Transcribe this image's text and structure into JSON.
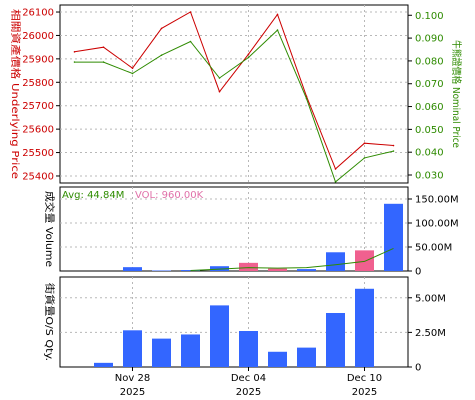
{
  "chart_data": [
    {
      "type": "line",
      "panel": "price",
      "y_left_label": "相關資產價格 Underlying Price",
      "y_right_label": "牛熊證價格 Nominal Price",
      "left_axis": {
        "min": 25370,
        "max": 26130,
        "ticks": [
          25400,
          25500,
          25600,
          25700,
          25800,
          25900,
          26000,
          26100
        ]
      },
      "right_axis": {
        "min": 0.0265,
        "max": 0.1045,
        "ticks": [
          "0.030",
          "0.040",
          "0.050",
          "0.060",
          "0.070",
          "0.080",
          "0.090",
          "0.100"
        ]
      },
      "series": [
        {
          "axis": "left",
          "color": "#cc0000",
          "values": [
            25930,
            25950,
            25860,
            26030,
            26100,
            25760,
            25920,
            26090,
            25740,
            25430,
            25540,
            25530
          ]
        },
        {
          "axis": "right",
          "color": "#2e8b00",
          "values": [
            0.0795,
            0.0795,
            0.0745,
            0.0825,
            0.0885,
            0.0725,
            0.0815,
            0.0935,
            0.0635,
            0.027,
            0.0375,
            0.0405
          ]
        }
      ]
    },
    {
      "type": "bar",
      "panel": "volume",
      "y_label": "成交量 Volume",
      "axis": {
        "min": 0,
        "max": 175,
        "ticks": [
          "0",
          "50.00M",
          "100.00M",
          "150.00M"
        ],
        "tick_values": [
          0,
          50,
          100,
          150
        ]
      },
      "avg_text": "Avg: 44.84M",
      "vol_text": "VOL: 960.00K",
      "bars": [
        {
          "value": 0,
          "color": ""
        },
        {
          "value": 0,
          "color": ""
        },
        {
          "value": 8,
          "color": "#3366ff"
        },
        {
          "value": 1,
          "color": "#3366ff"
        },
        {
          "value": 2,
          "color": "#3366ff"
        },
        {
          "value": 10,
          "color": "#3366ff"
        },
        {
          "value": 17,
          "color": "#f0608f"
        },
        {
          "value": 5,
          "color": "#f0608f"
        },
        {
          "value": 4,
          "color": "#3366ff"
        },
        {
          "value": 39,
          "color": "#3366ff"
        },
        {
          "value": 43,
          "color": "#f0608f"
        },
        {
          "value": 140,
          "color": "#3366ff"
        }
      ],
      "avg_line": {
        "color": "#2e8b00",
        "values": [
          null,
          null,
          null,
          null,
          1,
          4,
          7,
          6,
          7,
          13,
          20,
          47
        ]
      }
    },
    {
      "type": "bar",
      "panel": "os_qty",
      "y_label": "街貨量O/S Qty.",
      "axis": {
        "min": 0,
        "max": 6.5,
        "ticks": [
          "0",
          "2.50M",
          "5.00M"
        ],
        "tick_values": [
          0,
          2.5,
          5
        ]
      },
      "bars": [
        {
          "value": 0,
          "color": ""
        },
        {
          "value": 0.3,
          "color": "#3366ff"
        },
        {
          "value": 2.65,
          "color": "#3366ff"
        },
        {
          "value": 2.05,
          "color": "#3366ff"
        },
        {
          "value": 2.35,
          "color": "#3366ff"
        },
        {
          "value": 4.45,
          "color": "#3366ff"
        },
        {
          "value": 2.6,
          "color": "#3366ff"
        },
        {
          "value": 1.1,
          "color": "#3366ff"
        },
        {
          "value": 1.4,
          "color": "#3366ff"
        },
        {
          "value": 3.9,
          "color": "#3366ff"
        },
        {
          "value": 5.65,
          "color": "#3366ff"
        },
        {
          "value": 0,
          "color": ""
        }
      ]
    }
  ],
  "x_axis": {
    "labels": [
      {
        "index": 2,
        "line1": "Nov 28",
        "line2": "2025"
      },
      {
        "index": 6,
        "line1": "Dec 04",
        "line2": "2025"
      },
      {
        "index": 10,
        "line1": "Dec 10",
        "line2": "2025"
      }
    ]
  },
  "colors": {
    "price_left_axis": "#cc0000",
    "price_right_axis": "#2e8b00",
    "volume_label_avg": "#2e8b00",
    "volume_label_vol": "#e070a8",
    "grid": "#b8b8b8",
    "axis": "#000000"
  }
}
